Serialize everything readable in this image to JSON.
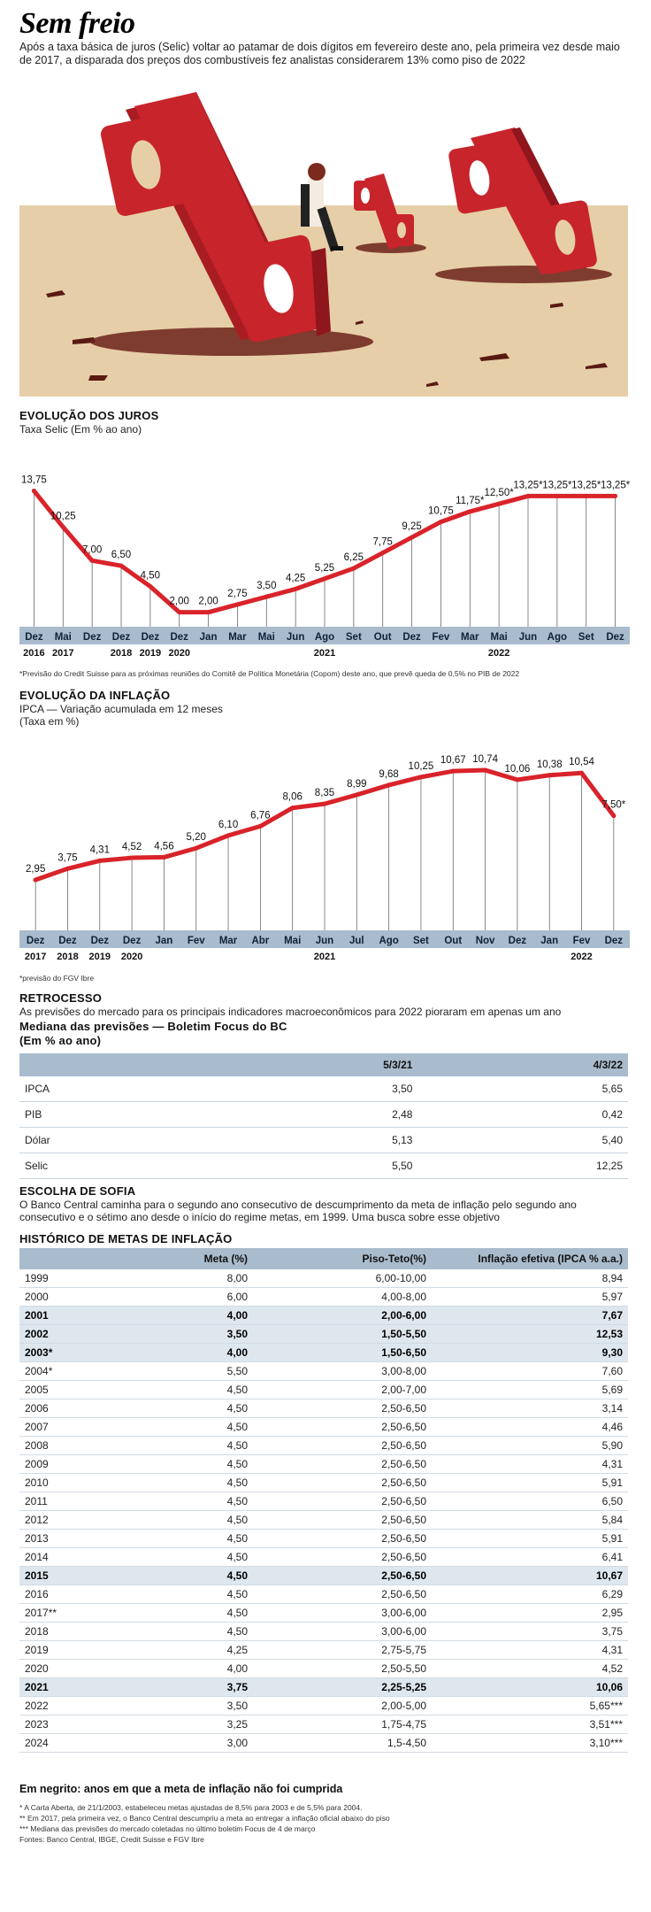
{
  "title": "Sem freio",
  "lead": "Após a taxa básica de juros (Selic) voltar ao patamar de dois dígitos em fevereiro deste ano, pela primeira vez desde maio de 2017, a disparada dos preços dos combustíveis fez analistas considerarem 13% como piso de 2022",
  "colors": {
    "line": "#d9232a",
    "band": "#a9bccd",
    "sand": "#e6cfa8",
    "red": "#c8242b"
  },
  "chart_data": [
    {
      "type": "line",
      "title": "EVOLUÇÃO DOS JUROS",
      "subtitle": "Taxa Selic (Em % ao ano)",
      "categories": [
        "Dez",
        "Mai",
        "Dez",
        "Dez",
        "Dez",
        "Dez",
        "Jan",
        "Mar",
        "Mai",
        "Jun",
        "Ago",
        "Set",
        "Out",
        "Dez",
        "Fev",
        "Mar",
        "Mai",
        "Jun",
        "Ago",
        "Set",
        "Dez"
      ],
      "years": [
        {
          "label": "2016",
          "index": 0
        },
        {
          "label": "2017",
          "index": 1
        },
        {
          "label": "2018",
          "index": 3
        },
        {
          "label": "2019",
          "index": 4
        },
        {
          "label": "2020",
          "index": 5
        },
        {
          "label": "2021",
          "index": 10
        },
        {
          "label": "2022",
          "index": 16
        }
      ],
      "values": [
        13.75,
        10.25,
        7.0,
        6.5,
        4.5,
        2.0,
        2.0,
        2.75,
        3.5,
        4.25,
        5.25,
        6.25,
        7.75,
        9.25,
        10.75,
        11.75,
        12.5,
        13.25,
        13.25,
        13.25,
        13.25
      ],
      "labels": [
        "13,75",
        "10,25",
        "7,00",
        "6,50",
        "4,50",
        "2,00",
        "2,00",
        "2,75",
        "3,50",
        "4,25",
        "5,25",
        "6,25",
        "7,75",
        "9,25",
        "10,75",
        "11,75*",
        "12,50*",
        "13,25*",
        "13,25*",
        "13,25*",
        "13,25*"
      ],
      "ylim": [
        0,
        15
      ],
      "note": "*Previsão do Credit Suisse para as próximas reuniões do Comitê de Política Monetária (Copom) deste ano, que prevê queda de 0,5% no PIB de 2022"
    },
    {
      "type": "line",
      "title": "EVOLUÇÃO DA INFLAÇÃO",
      "subtitle": "IPCA — Variação acumulada em 12 meses",
      "subtitle2": "(Taxa em %)",
      "categories": [
        "Dez",
        "Dez",
        "Dez",
        "Dez",
        "Jan",
        "Fev",
        "Mar",
        "Abr",
        "Mai",
        "Jun",
        "Jul",
        "Ago",
        "Set",
        "Out",
        "Nov",
        "Dez",
        "Jan",
        "Fev",
        "Dez"
      ],
      "years": [
        {
          "label": "2017",
          "index": 0
        },
        {
          "label": "2018",
          "index": 1
        },
        {
          "label": "2019",
          "index": 2
        },
        {
          "label": "2020",
          "index": 3
        },
        {
          "label": "2021",
          "index": 9
        },
        {
          "label": "2022",
          "index": 17
        }
      ],
      "values": [
        2.95,
        3.75,
        4.31,
        4.52,
        4.56,
        5.2,
        6.1,
        6.76,
        8.06,
        8.35,
        8.99,
        9.68,
        10.25,
        10.67,
        10.74,
        10.06,
        10.38,
        10.54,
        7.5
      ],
      "labels": [
        "2,95",
        "3,75",
        "4,31",
        "4,52",
        "4,56",
        "5,20",
        "6,10",
        "6,76",
        "8,06",
        "8,35",
        "8,99",
        "9,68",
        "10,25",
        "10,67",
        "10,74",
        "10,06",
        "10,38",
        "10,54",
        "7,50*"
      ],
      "ylim": [
        0,
        12
      ],
      "note": "*previsão do FGV Ibre"
    }
  ],
  "retrocesso": {
    "title": "RETROCESSO",
    "lead": "As previsões do mercado para os principais indicadores macroeconômicos para 2022 pioraram em apenas um ano",
    "subtitle1": "Mediana das previsões — Boletim Focus do BC",
    "subtitle2": "(Em % ao ano)",
    "headers": [
      "",
      "5/3/21",
      "4/3/22"
    ],
    "rows": [
      [
        "IPCA",
        "3,50",
        "5,65"
      ],
      [
        "PIB",
        "2,48",
        "0,42"
      ],
      [
        "Dólar",
        "5,13",
        "5,40"
      ],
      [
        "Selic",
        "5,50",
        "12,25"
      ]
    ]
  },
  "sofia": {
    "title": "ESCOLHA DE SOFIA",
    "lead": "O Banco Central caminha para o segundo ano consecutivo de descumprimento da meta de inflação pelo segundo ano consecutivo e o sétimo ano desde o início do regime metas, em 1999. Uma busca sobre esse objetivo",
    "table_title": "HISTÓRICO DE METAS DE INFLAÇÃO",
    "headers": [
      "",
      "Meta (%)",
      "Piso-Teto(%)",
      "Inflação efetiva (IPCA % a.a.)"
    ],
    "rows": [
      {
        "cells": [
          "1999",
          "8,00",
          "6,00-10,00",
          "8,94"
        ],
        "bold": false
      },
      {
        "cells": [
          "2000",
          "6,00",
          "4,00-8,00",
          "5,97"
        ],
        "bold": false
      },
      {
        "cells": [
          "2001",
          "4,00",
          "2,00-6,00",
          "7,67"
        ],
        "bold": true
      },
      {
        "cells": [
          "2002",
          "3,50",
          "1,50-5,50",
          "12,53"
        ],
        "bold": true
      },
      {
        "cells": [
          "2003*",
          "4,00",
          "1,50-6,50",
          "9,30"
        ],
        "bold": true
      },
      {
        "cells": [
          "2004*",
          "5,50",
          "3,00-8,00",
          "7,60"
        ],
        "bold": false
      },
      {
        "cells": [
          "2005",
          "4,50",
          "2,00-7,00",
          "5,69"
        ],
        "bold": false
      },
      {
        "cells": [
          "2006",
          "4,50",
          "2,50-6,50",
          "3,14"
        ],
        "bold": false
      },
      {
        "cells": [
          "2007",
          "4,50",
          "2,50-6,50",
          "4,46"
        ],
        "bold": false
      },
      {
        "cells": [
          "2008",
          "4,50",
          "2,50-6,50",
          "5,90"
        ],
        "bold": false
      },
      {
        "cells": [
          "2009",
          "4,50",
          "2,50-6,50",
          "4,31"
        ],
        "bold": false
      },
      {
        "cells": [
          "2010",
          "4,50",
          "2,50-6,50",
          "5,91"
        ],
        "bold": false
      },
      {
        "cells": [
          "2011",
          "4,50",
          "2,50-6,50",
          "6,50"
        ],
        "bold": false
      },
      {
        "cells": [
          "2012",
          "4,50",
          "2,50-6,50",
          "5,84"
        ],
        "bold": false
      },
      {
        "cells": [
          "2013",
          "4,50",
          "2,50-6,50",
          "5,91"
        ],
        "bold": false
      },
      {
        "cells": [
          "2014",
          "4,50",
          "2,50-6,50",
          "6,41"
        ],
        "bold": false
      },
      {
        "cells": [
          "2015",
          "4,50",
          "2,50-6,50",
          "10,67"
        ],
        "bold": true
      },
      {
        "cells": [
          "2016",
          "4,50",
          "2,50-6,50",
          "6,29"
        ],
        "bold": false
      },
      {
        "cells": [
          "2017**",
          "4,50",
          "3,00-6,00",
          "2,95"
        ],
        "bold": false
      },
      {
        "cells": [
          "2018",
          "4,50",
          "3,00-6,00",
          "3,75"
        ],
        "bold": false
      },
      {
        "cells": [
          "2019",
          "4,25",
          "2,75-5,75",
          "4,31"
        ],
        "bold": false
      },
      {
        "cells": [
          "2020",
          "4,00",
          "2,50-5,50",
          "4,52"
        ],
        "bold": false
      },
      {
        "cells": [
          "2021",
          "3,75",
          "2,25-5,25",
          "10,06"
        ],
        "bold": true
      },
      {
        "cells": [
          "2022",
          "3,50",
          "2,00-5,00",
          "5,65***"
        ],
        "bold": false
      },
      {
        "cells": [
          "2023",
          "3,25",
          "1,75-4,75",
          "3,51***"
        ],
        "bold": false
      },
      {
        "cells": [
          "2024",
          "3,00",
          "1,5-4,50",
          "3,10***"
        ],
        "bold": false
      }
    ],
    "bold_note": "Em negrito: anos em que a meta de inflação não foi cumprida",
    "footnotes": [
      "* A Carta Aberta, de 21/1/2003, estabeleceu metas ajustadas de 8,5% para 2003 e de 5,5% para 2004.",
      "** Em 2017, pela primeira vez, o Banco Central descumpriu a meta ao entregar a inflação oficial abaixo do piso",
      "*** Mediana das previsões do mercado coletadas no último boletim Focus de 4 de março",
      "Fontes: Banco Central, IBGE, Credit Suisse e FGV Ibre"
    ]
  }
}
